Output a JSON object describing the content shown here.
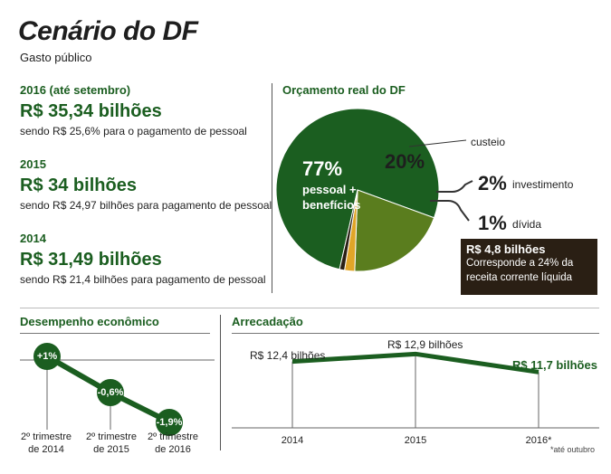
{
  "header": {
    "title": "Cenário do DF",
    "subtitle": "Gasto público"
  },
  "gasto": [
    {
      "period": "2016 (até setembro)",
      "value": "R$ 35,34 bilhões",
      "note": "sendo R$ 25,6% para o pagamento de pessoal"
    },
    {
      "period": "2015",
      "value": "R$ 34 bilhões",
      "note": "sendo R$ 24,97 bilhões para pagamento de pessoal"
    },
    {
      "period": "2014",
      "value": "R$ 31,49 bilhões",
      "note": "sendo R$ 21,4 bilhões para pagamento de pessoal"
    }
  ],
  "orcamento": {
    "title": "Orçamento real do DF",
    "box_value": "R$ 4,8 bilhões",
    "box_line1": "Corresponde a 24% da",
    "box_line2": "receita corrente líquida"
  },
  "desempenho": {
    "title": "Desempenho econômico"
  },
  "arrecadacao": {
    "title": "Arrecadação",
    "footnote": "*até outubro"
  },
  "colors": {
    "dark_green": "#1b5e20",
    "olive": "#5a7d1e",
    "gold": "#e0a528",
    "dark_box": "#2a1f14"
  },
  "chart_data": [
    {
      "type": "pie",
      "title": "Orçamento real do DF",
      "slices": [
        {
          "label_pct": "77%",
          "label": "pessoal + benefícios",
          "value": 77,
          "color": "#1b5e20"
        },
        {
          "label_pct": "20%",
          "label": "custeio",
          "value": 20,
          "color": "#5a7d1e"
        },
        {
          "label_pct": "2%",
          "label": "investimento",
          "value": 2,
          "color": "#e0a528"
        },
        {
          "label_pct": "1%",
          "label": "dívida",
          "value": 1,
          "color": "#2a1f14"
        }
      ]
    },
    {
      "type": "line",
      "title": "Desempenho econômico",
      "categories": [
        "2º trimestre de 2014",
        "2º trimestre de 2015",
        "2º trimestre de 2016"
      ],
      "values": [
        1,
        -0.6,
        -1.9
      ],
      "labels": [
        "+1%",
        "-0,6%",
        "-1,9%"
      ],
      "ylim": [
        -2.5,
        1.5
      ]
    },
    {
      "type": "line",
      "title": "Arrecadação",
      "categories": [
        "2014",
        "2015",
        "2016*"
      ],
      "values": [
        12.4,
        12.9,
        11.7
      ],
      "labels": [
        "R$ 12,4 bilhões",
        "R$ 12,9 bilhões",
        "R$ 11,7 bilhões"
      ],
      "ylim": [
        8,
        14
      ]
    }
  ]
}
